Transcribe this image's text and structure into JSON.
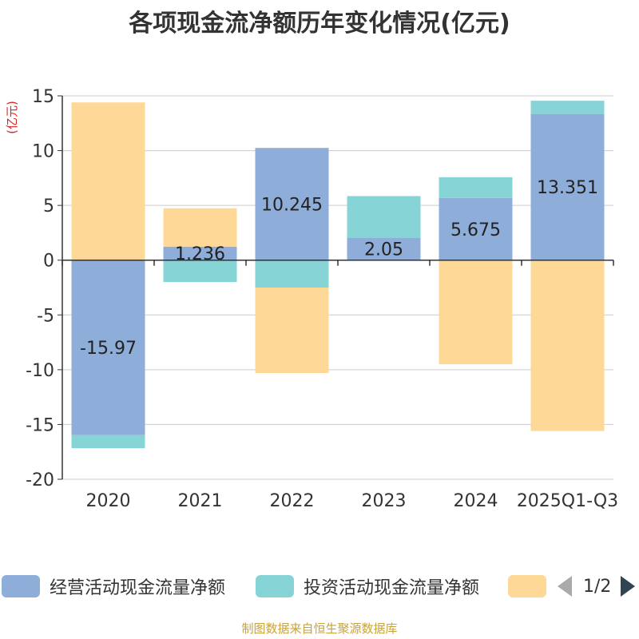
{
  "chart_data": {
    "type": "bar",
    "stacked": true,
    "title": "各项现金流净额历年变化情况(亿元)",
    "ylabel": "(亿元)",
    "xlabel": "",
    "ylim": [
      -20,
      15
    ],
    "yticks": [
      15,
      10,
      5,
      0,
      -5,
      -10,
      -15,
      -20
    ],
    "categories": [
      "2020",
      "2021",
      "2022",
      "2023",
      "2024",
      "2025Q1-Q3"
    ],
    "series": [
      {
        "name": "经营活动现金流量净额",
        "color": "#8eadd9",
        "values": [
          -15.97,
          1.236,
          10.245,
          2.05,
          5.675,
          13.351
        ],
        "labels": [
          "-15.97",
          "1.236",
          "10.245",
          "2.05",
          "5.675",
          "13.351"
        ]
      },
      {
        "name": "投资活动现金流量净额",
        "color": "#87d4d6",
        "values": [
          -1.2,
          -2.0,
          -2.5,
          3.8,
          1.9,
          1.2
        ]
      },
      {
        "name": "",
        "color": "#fed897",
        "values": [
          14.4,
          3.5,
          -7.8,
          0,
          -9.5,
          -15.6
        ]
      }
    ]
  },
  "legend": {
    "items": [
      {
        "label": "经营活动现金流量净额",
        "color": "#8eadd9"
      },
      {
        "label": "投资活动现金流量净额",
        "color": "#87d4d6"
      },
      {
        "label": "",
        "color": "#fed897"
      }
    ],
    "pager": "1/2"
  },
  "source": "制图数据来自恒生聚源数据库"
}
